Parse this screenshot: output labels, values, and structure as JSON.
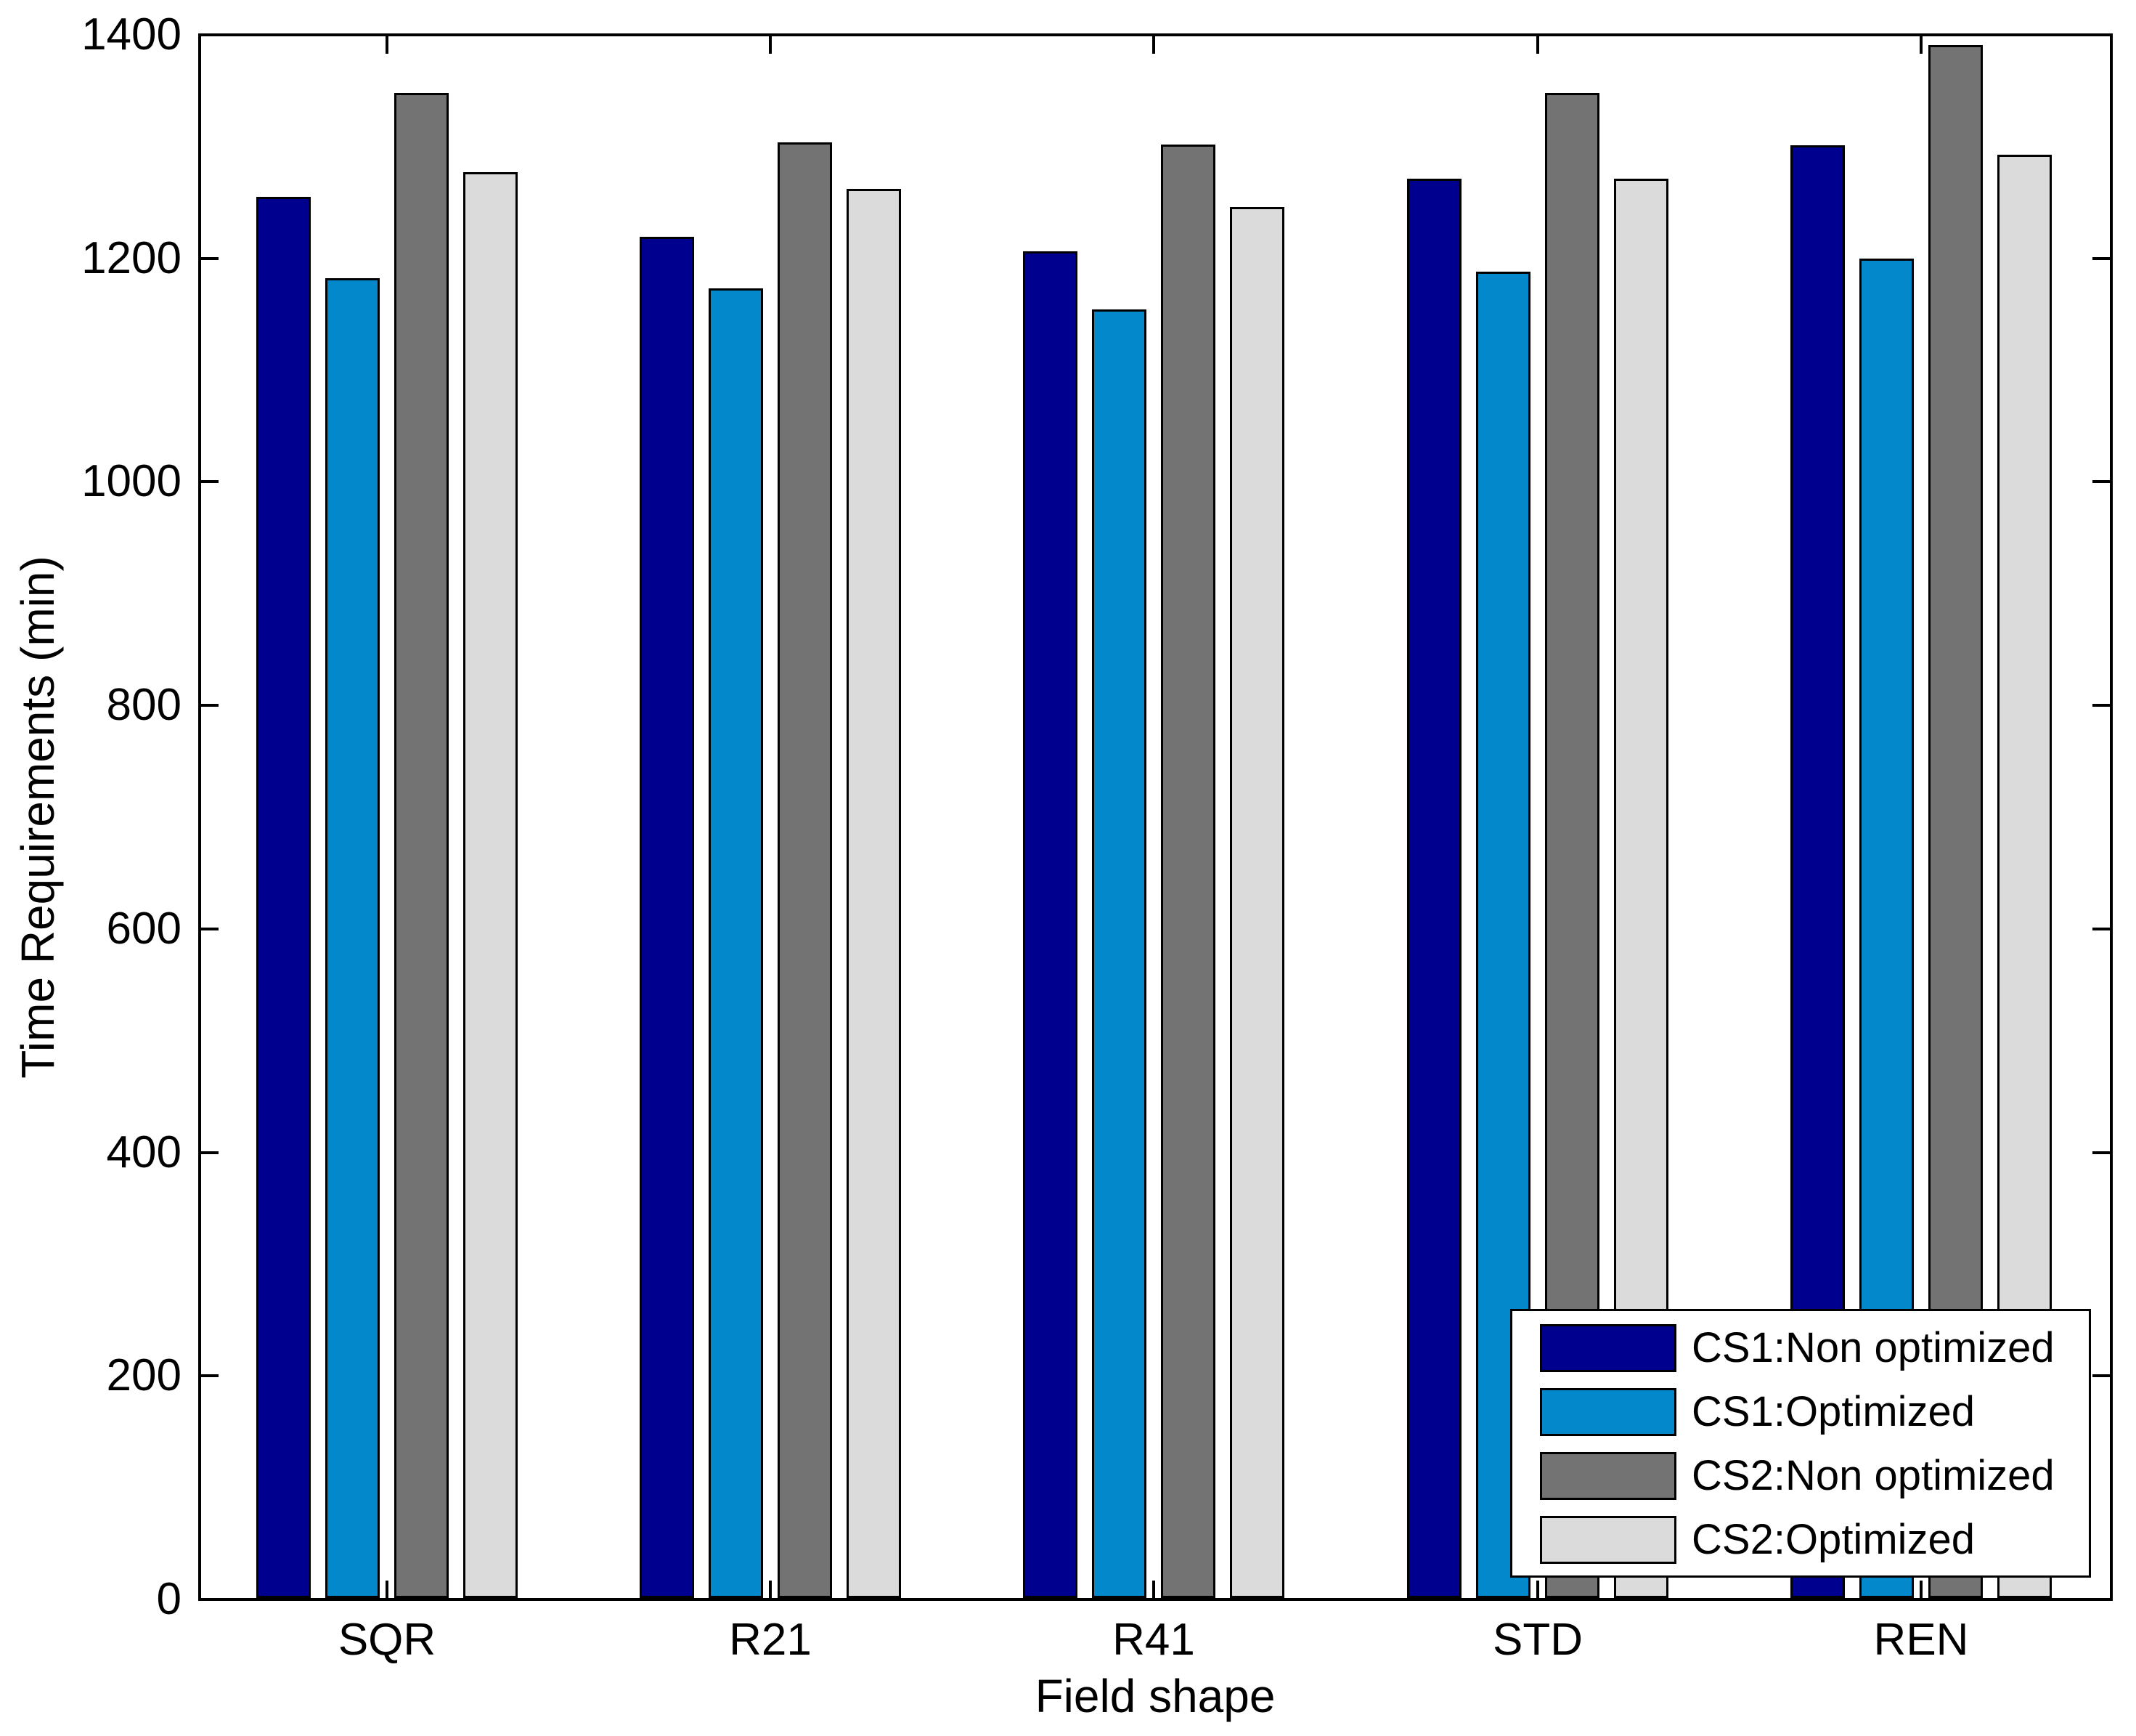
{
  "figure": {
    "background_color": "#FFFFFF",
    "axis_color": "#000000"
  },
  "chart_data": {
    "type": "bar",
    "title": "",
    "xlabel": "Field shape",
    "ylabel": "Time Requirements (min)",
    "categories": [
      "SQR",
      "R21",
      "R41",
      "STD",
      "REN"
    ],
    "series": [
      {
        "name": "CS1:Non optimized",
        "color": "#00008F",
        "values": [
          1255,
          1219,
          1206,
          1271,
          1301
        ]
      },
      {
        "name": "CS1:Optimized",
        "color": "#0389CB",
        "values": [
          1182,
          1173,
          1154,
          1188,
          1200
        ]
      },
      {
        "name": "CS2:Non optimized",
        "color": "#737373",
        "values": [
          1348,
          1304,
          1302,
          1348,
          1391
        ]
      },
      {
        "name": "CS2:Optimized",
        "color": "#DBDBDB",
        "values": [
          1277,
          1262,
          1246,
          1271,
          1293
        ]
      }
    ],
    "ylim": [
      0,
      1400
    ],
    "yticks": [
      0,
      200,
      400,
      600,
      800,
      1000,
      1200,
      1400
    ],
    "grid": false,
    "legend_position": "bottom-right",
    "legend_entries": [
      "CS1:Non optimized",
      "CS1:Optimized",
      "CS2:Non optimized",
      "CS2:Optimized"
    ]
  }
}
